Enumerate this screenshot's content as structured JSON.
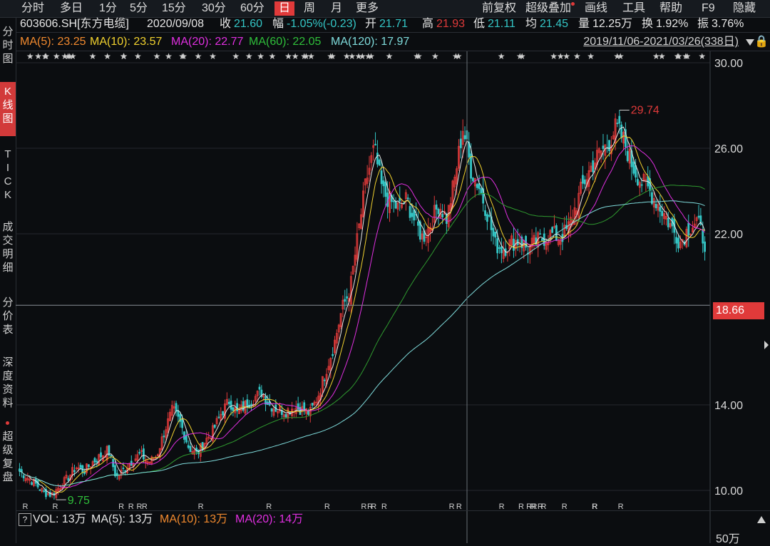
{
  "topbar": {
    "periods": [
      "分时",
      "多日",
      "1分",
      "5分",
      "15分",
      "30分",
      "60分",
      "日",
      "周",
      "月",
      "更多"
    ],
    "active_period": "日",
    "tools": [
      "前复权",
      "超级叠加",
      "画线",
      "工具",
      "帮助",
      "F9",
      "隐藏"
    ]
  },
  "sidebar": {
    "items": [
      "分时图",
      "K线图",
      "TICK",
      "成交明细",
      "分价表",
      "深度资料",
      "超级复盘"
    ],
    "active": "K线图"
  },
  "quote": {
    "code_name": "603606.SH[东方电缆]",
    "date": "2020/09/08",
    "close_label": "收",
    "close": "21.60",
    "change_label": "幅",
    "change": "-1.05%(-0.23)",
    "open_label": "开",
    "open": "21.71",
    "high_label": "高",
    "high": "21.93",
    "low_label": "低",
    "low": "21.11",
    "avg_label": "均",
    "avg": "21.45",
    "volume_label": "量",
    "volume": "12.25万",
    "turnover_label": "换",
    "turnover": "1.92%",
    "amplitude_label": "振",
    "amplitude": "3.76%"
  },
  "ma": {
    "ma5": "MA(5): 23.25",
    "ma10": "MA(10): 23.57",
    "ma20": "MA(20): 22.77",
    "ma60": "MA(60): 22.05",
    "ma120": "MA(120): 17.97",
    "range": "2019/11/06-2021/03/26(338日)"
  },
  "volume": {
    "question": "?",
    "vol": "VOL: 13万",
    "ma5": "MA(5): 13万",
    "ma10": "MA(10): 13万",
    "ma20": "MA(20): 14万",
    "axis": "50万"
  },
  "colors": {
    "up": "#e03a3a",
    "down": "#34c6c6",
    "ma5": "#e8e8e8",
    "ma10": "#f2d22e",
    "ma20": "#e02fe0",
    "ma60": "#2f9a2f",
    "ma120": "#7fdcdc",
    "accent": "#e03a3a"
  },
  "chart_data": {
    "type": "candlestick",
    "period_label": "2019/11/06-2021/03/26(338日)",
    "ylim": [
      9.2,
      30.4
    ],
    "y_ticks": [
      "30.00",
      "26.00",
      "22.00",
      "14.00",
      "10.00"
    ],
    "crosshair_value": "18.66",
    "annotations": [
      {
        "label": "29.74"
      },
      {
        "label": "9.75"
      }
    ],
    "close_path": [
      10.9,
      10.6,
      10.3,
      9.9,
      9.8,
      10.2,
      10.6,
      11.1,
      10.9,
      11.3,
      11.6,
      11.9,
      10.6,
      11.0,
      11.4,
      11.7,
      11.3,
      11.6,
      12.8,
      13.8,
      13.1,
      12.0,
      11.7,
      12.3,
      12.8,
      13.6,
      14.2,
      13.6,
      14.0,
      14.3,
      14.6,
      14.0,
      13.8,
      13.7,
      13.9,
      13.8,
      13.6,
      14.4,
      15.6,
      16.8,
      18.5,
      19.4,
      22.0,
      24.5,
      26.0,
      24.0,
      23.5,
      23.2,
      23.6,
      22.6,
      21.8,
      22.5,
      23.4,
      22.7,
      24.6,
      27.0,
      25.0,
      24.2,
      23.0,
      21.5,
      21.3,
      21.6,
      21.7,
      21.3,
      21.6,
      21.8,
      22.0,
      21.8,
      22.2,
      23.3,
      24.4,
      25.2,
      25.8,
      26.2,
      27.0,
      26.3,
      25.2,
      24.5,
      24.1,
      23.5,
      22.9,
      22.2,
      21.6,
      22.3,
      22.6,
      21.6
    ],
    "ma_lines": [
      {
        "name": "MA(5)",
        "color": "#e8e8e8"
      },
      {
        "name": "MA(10)",
        "color": "#f2d22e"
      },
      {
        "name": "MA(20)",
        "color": "#e02fe0"
      },
      {
        "name": "MA(60)",
        "color": "#2f9a2f"
      },
      {
        "name": "MA(120)",
        "color": "#7fdcdc"
      }
    ]
  }
}
